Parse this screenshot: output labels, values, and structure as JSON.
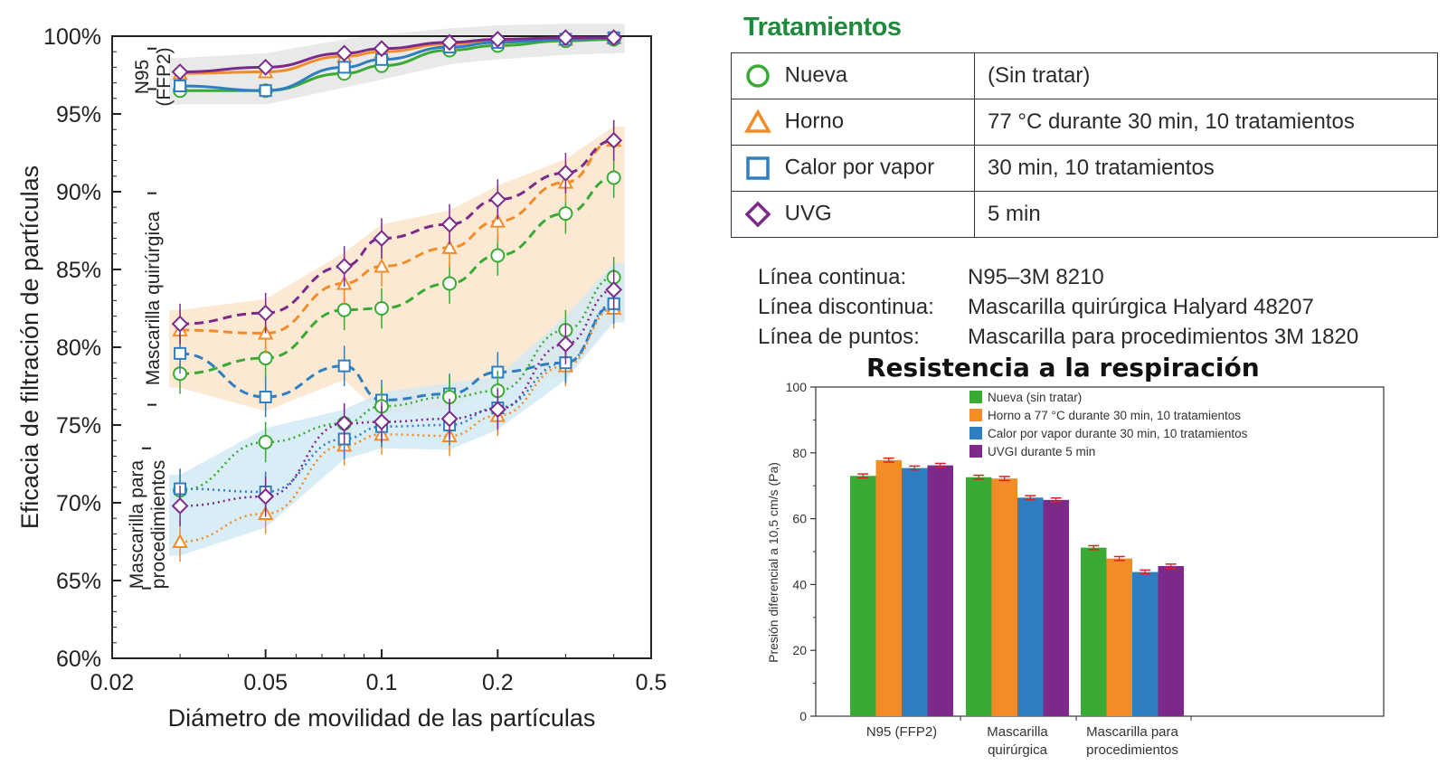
{
  "colors": {
    "nueva": "#3aaa35",
    "horno": "#f28c28",
    "vapor": "#2f7ec1",
    "uvg": "#7b2a8c"
  },
  "legend": {
    "title": "Tratamientos",
    "rows": [
      {
        "symbol": "circle-icon",
        "label": "Nueva",
        "desc": "(Sin tratar)"
      },
      {
        "symbol": "triangle-icon",
        "label": "Horno",
        "desc": "77 °C durante 30 min, 10 tratamientos"
      },
      {
        "symbol": "square-icon",
        "label": "Calor por vapor",
        "desc": "30 min, 10 tratamientos"
      },
      {
        "symbol": "diamond-icon",
        "label": "UVG",
        "desc": "5 min"
      }
    ],
    "line_styles": [
      {
        "key": "Línea continua:",
        "value": "N95–3M 8210"
      },
      {
        "key": "Línea discontinua:",
        "value": "Mascarilla quirúrgica Halyard 48207"
      },
      {
        "key": "Línea de puntos:",
        "value": "Mascarilla para procedimientos 3M 1820"
      }
    ]
  },
  "chart_data": [
    {
      "type": "line",
      "xlabel": "Diámetro de movilidad de las partículas",
      "ylabel": "Eficacia de filtración de partículas",
      "x_scale": "log",
      "xlim": [
        0.02,
        0.5
      ],
      "ylim": [
        60,
        100
      ],
      "xticks": [
        "0.02",
        "0.05",
        "0.1",
        "0.2",
        "0.5"
      ],
      "yticks": [
        "60%",
        "65%",
        "70%",
        "75%",
        "80%",
        "85%",
        "90%",
        "95%",
        "100%"
      ],
      "x": [
        0.03,
        0.05,
        0.08,
        0.1,
        0.15,
        0.2,
        0.3,
        0.4
      ],
      "groups": [
        {
          "label": "N95 (FFP2)",
          "style": "solid",
          "series": [
            {
              "name": "Nueva",
              "values": [
                96.5,
                96.5,
                97.6,
                98.1,
                99.1,
                99.4,
                99.7,
                99.8
              ]
            },
            {
              "name": "Horno",
              "values": [
                97.6,
                97.7,
                98.7,
                99.0,
                99.5,
                99.7,
                99.8,
                99.9
              ]
            },
            {
              "name": "Calor por vapor",
              "values": [
                96.8,
                96.5,
                98.0,
                98.5,
                99.3,
                99.6,
                99.8,
                99.9
              ]
            },
            {
              "name": "UVG",
              "values": [
                97.7,
                98.0,
                98.9,
                99.2,
                99.6,
                99.8,
                99.9,
                99.9
              ]
            }
          ]
        },
        {
          "label": "Mascarilla quirúrgica",
          "style": "dashed",
          "series": [
            {
              "name": "Nueva",
              "values": [
                78.3,
                79.3,
                82.4,
                82.5,
                84.1,
                85.9,
                88.6,
                90.9
              ]
            },
            {
              "name": "Horno",
              "values": [
                81.1,
                80.9,
                84.1,
                85.2,
                86.4,
                88.1,
                90.6,
                93.3
              ]
            },
            {
              "name": "Calor por vapor",
              "values": [
                79.6,
                76.8,
                78.8,
                76.6,
                77.0,
                78.4,
                79.0,
                82.7
              ]
            },
            {
              "name": "UVG",
              "values": [
                81.5,
                82.2,
                85.2,
                87.0,
                87.9,
                89.5,
                91.2,
                93.3
              ]
            }
          ]
        },
        {
          "label": "Mascarilla para procedimientos",
          "style": "dotted",
          "series": [
            {
              "name": "Nueva",
              "values": [
                70.8,
                73.9,
                75.1,
                76.2,
                76.8,
                77.2,
                81.1,
                84.5
              ]
            },
            {
              "name": "Horno",
              "values": [
                67.5,
                69.3,
                73.7,
                74.4,
                74.3,
                75.6,
                78.8,
                82.5
              ]
            },
            {
              "name": "Calor por vapor",
              "values": [
                70.9,
                70.7,
                74.1,
                74.9,
                75.0,
                76.1,
                79.0,
                82.8
              ]
            },
            {
              "name": "UVG",
              "values": [
                69.8,
                70.4,
                75.1,
                75.2,
                75.4,
                76.0,
                80.2,
                83.7
              ]
            }
          ]
        }
      ]
    },
    {
      "type": "bar",
      "title": "Resistencia a la respiración",
      "ylabel": "Presión diferencial a 10,5 cm/s (Pa)",
      "ylim": [
        0,
        100
      ],
      "yticks": [
        "0",
        "20",
        "40",
        "60",
        "80",
        "100"
      ],
      "categories": [
        "N95 (FFP2)",
        "Mascarilla quirúrgica",
        "Mascarilla para procedimientos"
      ],
      "series": [
        {
          "name": "Nueva (sin tratar)",
          "values": [
            73.0,
            72.6,
            51.2
          ]
        },
        {
          "name": "Horno a 77 °C durante 30 min, 10 tratamientos",
          "values": [
            77.8,
            72.2,
            47.9
          ]
        },
        {
          "name": "Calor por vapor durante 30 min, 10 tratamientos",
          "values": [
            75.4,
            66.4,
            43.8
          ]
        },
        {
          "name": "UVGI durante 5 min",
          "values": [
            76.2,
            65.7,
            45.6
          ]
        }
      ]
    }
  ]
}
